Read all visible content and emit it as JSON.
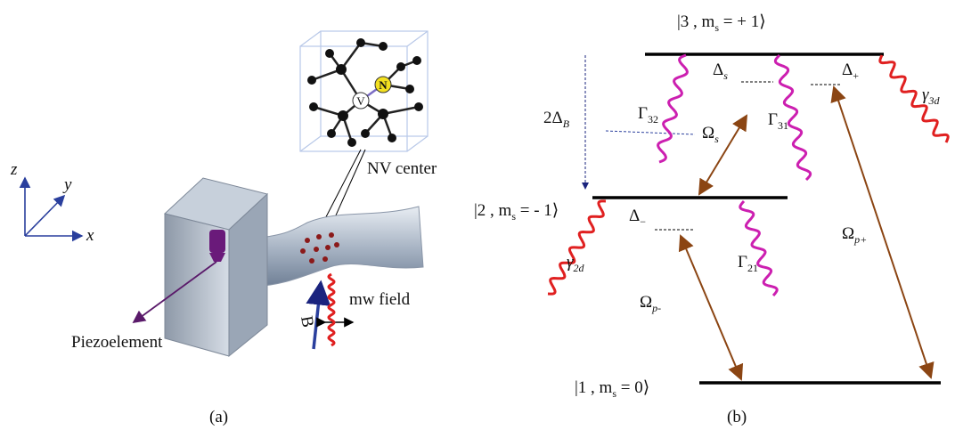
{
  "panel_a": {
    "axes": {
      "z": "z",
      "y": "y",
      "x": "x"
    },
    "atom_v": "V",
    "atom_n": "N",
    "nv_center": "NV center",
    "piezo": "Piezoelement",
    "field_b": "B",
    "mw_field": "mw field",
    "caption": "(a)"
  },
  "panel_b": {
    "level_3": {
      "before": "|3 , m",
      "sub": "s",
      "after": " = + 1⟩"
    },
    "level_2": {
      "before": "|2 , m",
      "sub": "s",
      "after": " = - 1⟩"
    },
    "level_1": {
      "before": "|1 , m",
      "sub": "s",
      "after": " = 0⟩"
    },
    "delta_s": {
      "text": "Δ",
      "sub": "s"
    },
    "delta_plus": {
      "text": "Δ",
      "sub": "+"
    },
    "delta_minus": {
      "text": "Δ",
      "sub": "−"
    },
    "delta_b": {
      "text": "2Δ",
      "sub": "B"
    },
    "gamma_32": {
      "text": "Γ",
      "sub": "32"
    },
    "gamma_31": {
      "text": "Γ",
      "sub": "31"
    },
    "gamma_21": {
      "text": "Γ",
      "sub": "21"
    },
    "omega_s": {
      "text": "Ω",
      "sub": "s"
    },
    "omega_pm": {
      "text": "Ω",
      "sub": "p-"
    },
    "omega_pp": {
      "text": "Ω",
      "sub": "p+"
    },
    "g_3d": {
      "text": "γ",
      "sub": "3d"
    },
    "g_2d": {
      "text": "γ",
      "sub": "2d"
    },
    "caption": "(b)"
  }
}
